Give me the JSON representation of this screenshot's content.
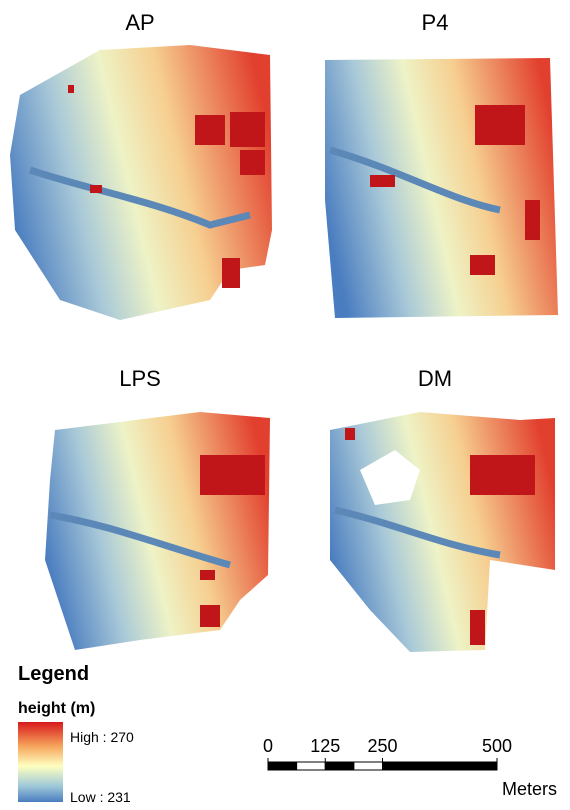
{
  "panels": [
    "AP",
    "P4",
    "LPS",
    "DM"
  ],
  "legend": {
    "title": "Legend",
    "field": "height (m)",
    "high": "High : 270",
    "low": "Low : 231"
  },
  "scale_bar": {
    "ticks": [
      0,
      125,
      250,
      500
    ],
    "unit": "Meters"
  }
}
